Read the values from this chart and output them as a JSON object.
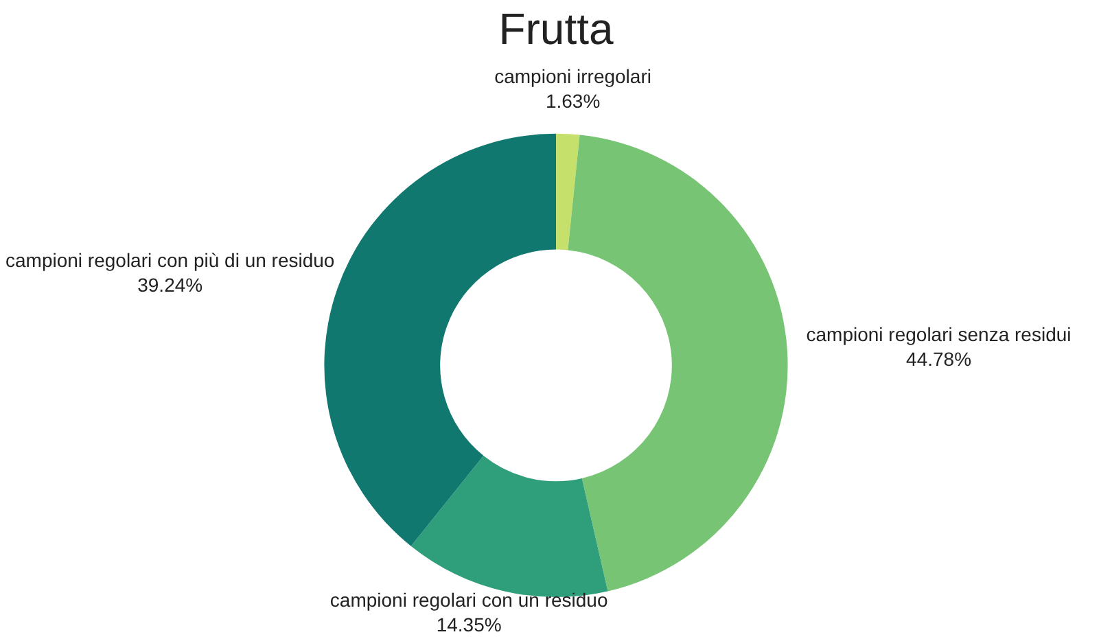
{
  "chart_data": {
    "type": "donut",
    "title": "Frutta",
    "categories": [
      "campioni irregolari",
      "campioni regolari senza residui",
      "campioni regolari con un residuo",
      "campioni regolari con più di un residuo"
    ],
    "values": [
      1.63,
      44.78,
      14.35,
      39.24
    ],
    "colors": [
      "#c5e06b",
      "#78c475",
      "#2f9e7a",
      "#117870"
    ],
    "value_labels": [
      "1.63%",
      "44.78%",
      "14.35%",
      "39.24%"
    ],
    "legend": false
  }
}
